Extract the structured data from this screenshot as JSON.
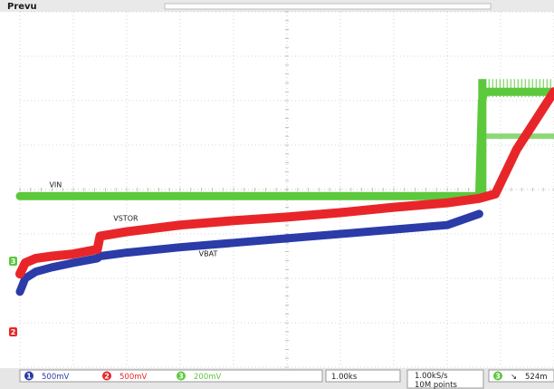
{
  "header": {
    "status": "Prevu"
  },
  "chart_data": {
    "type": "line",
    "title": "",
    "xlabel": "",
    "ylabel": "",
    "grid": true,
    "x_divisions": 10,
    "y_divisions": 8,
    "series": [
      {
        "name": "VIN",
        "color": "#5cc83c",
        "x": [
          0,
          0.5,
          1.0,
          2.0,
          3.0,
          4.0,
          5.0,
          6.0,
          7.0,
          8.0,
          8.6,
          8.65,
          8.7,
          9.0,
          10.0
        ],
        "y": [
          -0.15,
          -0.15,
          -0.15,
          -0.15,
          -0.15,
          -0.15,
          -0.15,
          -0.15,
          -0.15,
          -0.15,
          -0.15,
          2.0,
          2.2,
          2.2,
          2.2
        ]
      },
      {
        "name": "VSTOR",
        "color": "#e8262a",
        "x": [
          0,
          0.1,
          0.3,
          0.6,
          1.0,
          1.45,
          1.5,
          2.0,
          3.0,
          4.0,
          5.0,
          6.0,
          7.0,
          8.0,
          8.6,
          8.9,
          9.3,
          10.0
        ],
        "y": [
          -1.9,
          -1.65,
          -1.55,
          -1.5,
          -1.45,
          -1.35,
          -1.05,
          -0.95,
          -0.8,
          -0.7,
          -0.62,
          -0.52,
          -0.4,
          -0.3,
          -0.2,
          -0.1,
          0.9,
          2.2
        ]
      },
      {
        "name": "VBAT",
        "color": "#2b3ba8",
        "x": [
          0,
          0.1,
          0.3,
          0.6,
          1.0,
          1.45,
          1.5,
          2.0,
          3.0,
          4.0,
          5.0,
          6.0,
          7.0,
          8.0,
          8.6
        ],
        "y": [
          -2.3,
          -2.0,
          -1.85,
          -1.75,
          -1.65,
          -1.55,
          -1.5,
          -1.42,
          -1.3,
          -1.2,
          -1.1,
          -1.0,
          -0.9,
          -0.8,
          -0.55
        ]
      }
    ]
  },
  "footer": {
    "ch1": {
      "num": "1",
      "scale": "500mV",
      "color": "#2b3ba8"
    },
    "ch2": {
      "num": "2",
      "scale": "500mV",
      "color": "#e8262a"
    },
    "ch3": {
      "num": "3",
      "scale": "200mV",
      "color": "#5cc83c"
    },
    "timebase": "1.00ks",
    "sample_rate": "1.00kS/s",
    "record_length": "10M points",
    "trigger_channel": "3",
    "trigger_level": "524m"
  },
  "markers": {
    "ch3": "3",
    "ch2": "2"
  }
}
